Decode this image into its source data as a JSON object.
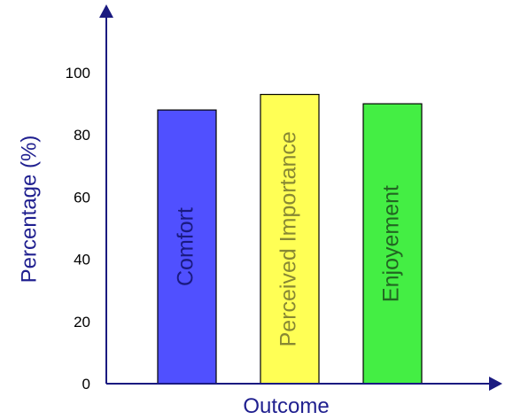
{
  "chart_data": {
    "type": "bar",
    "title": "",
    "xlabel": "Outcome",
    "ylabel": "Percentage (%)",
    "ylim": [
      0,
      100
    ],
    "yticks": [
      0,
      20,
      40,
      60,
      80,
      100
    ],
    "grid": false,
    "categories": [
      "Comfort",
      "Perceived Importance",
      "Enjoyement"
    ],
    "values": [
      88,
      93,
      90
    ],
    "colors": [
      "#5050ff",
      "#ffff55",
      "#44ee44"
    ],
    "label_colors": [
      "#1a1a80",
      "#888833",
      "#226622"
    ],
    "axis_color": "#1a1a80"
  }
}
